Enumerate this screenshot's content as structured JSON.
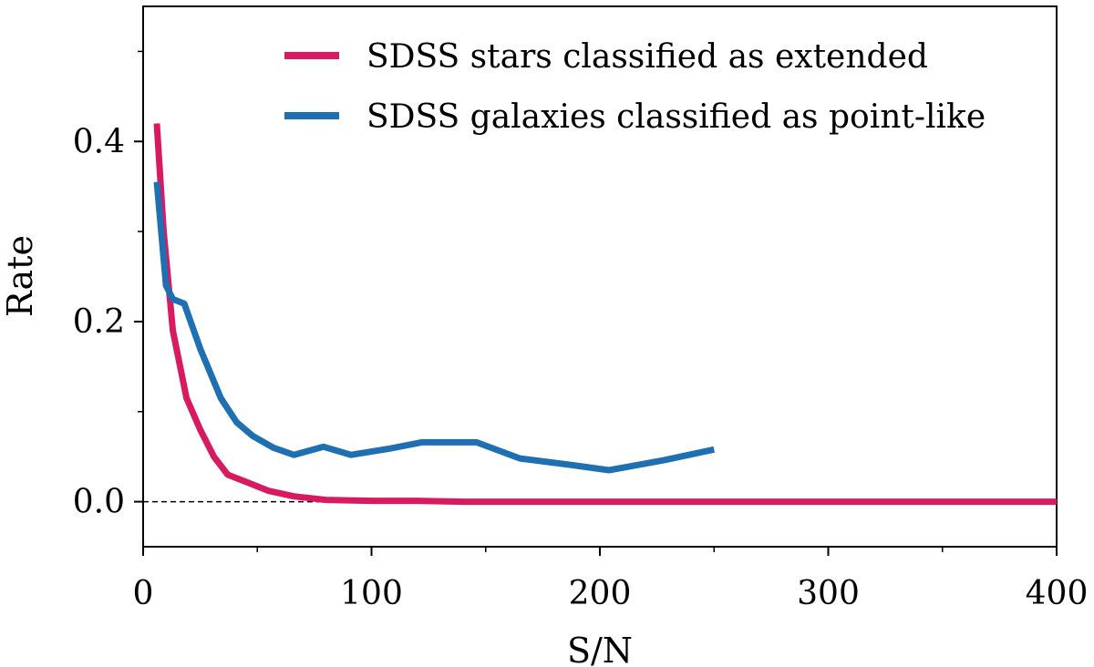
{
  "chart_data": {
    "type": "line",
    "title": "",
    "xlabel": "S/N",
    "ylabel": "Rate",
    "xlim": [
      0,
      400
    ],
    "ylim": [
      -0.05,
      0.55
    ],
    "x_major_ticks": [
      0,
      100,
      200,
      300,
      400
    ],
    "x_tick_labels": [
      "0",
      "100",
      "200",
      "300",
      "400"
    ],
    "x_minor_ticks": [
      50,
      150,
      250,
      350
    ],
    "y_major_ticks": [
      0.0,
      0.2,
      0.4
    ],
    "y_tick_labels": [
      "0.0",
      "0.2",
      "0.4"
    ],
    "y_minor_ticks": [
      0.1,
      0.3,
      0.5
    ],
    "grid": false,
    "legend_position": "top-right",
    "reference_line": {
      "y": 0.0,
      "style": "dashed",
      "color": "#000000"
    },
    "series": [
      {
        "name": "SDSS stars classified as extended",
        "color": "#d81b60",
        "x": [
          6,
          9,
          13,
          19,
          25,
          31,
          37,
          45,
          55,
          66,
          80,
          100,
          120,
          140,
          160,
          200,
          250,
          300,
          350,
          400
        ],
        "y": [
          0.42,
          0.3,
          0.19,
          0.115,
          0.08,
          0.05,
          0.03,
          0.022,
          0.012,
          0.006,
          0.002,
          0.001,
          0.001,
          0.0,
          0.0,
          0.0,
          0.0,
          0.0,
          0.0,
          0.0
        ]
      },
      {
        "name": "SDSS galaxies classified as point-like",
        "color": "#1f6fb3",
        "x": [
          6,
          10,
          13,
          18,
          25,
          34,
          41,
          48,
          57,
          66,
          79,
          91,
          108,
          122,
          146,
          165,
          187,
          204,
          228,
          250
        ],
        "y": [
          0.355,
          0.24,
          0.225,
          0.22,
          0.17,
          0.115,
          0.088,
          0.073,
          0.06,
          0.052,
          0.061,
          0.052,
          0.059,
          0.066,
          0.066,
          0.048,
          0.041,
          0.035,
          0.046,
          0.058
        ]
      }
    ]
  }
}
